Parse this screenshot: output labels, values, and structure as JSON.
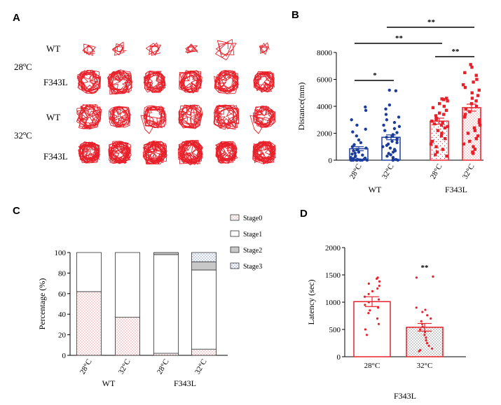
{
  "panels": {
    "a": "A",
    "b": "B",
    "c": "C",
    "d": "D"
  },
  "panel_a": {
    "rows": [
      {
        "temp": "",
        "genotype": "WT"
      },
      {
        "temp": "28ºC",
        "genotype": "F343L"
      },
      {
        "temp": "",
        "genotype": "WT"
      },
      {
        "temp": "32ºC",
        "genotype": "F343L"
      }
    ],
    "trace_color": "#e8202a",
    "columns": 6
  },
  "chart_data": [
    {
      "id": "B",
      "type": "bar",
      "ylabel": "Distance(mm)",
      "ylim": [
        0,
        8000
      ],
      "yticks": [
        "0",
        "2000",
        "4000",
        "6000",
        "8000"
      ],
      "categories": [
        "28°C",
        "32°C",
        "28°C",
        "32°C"
      ],
      "groups": [
        "WT",
        "F343L"
      ],
      "values": [
        850,
        1700,
        2900,
        3900
      ],
      "sem": [
        150,
        180,
        220,
        260
      ],
      "colors": [
        "#1c3d9c",
        "#1c3d9c",
        "#e8202a",
        "#e8202a"
      ],
      "points": [
        [
          3950,
          3700,
          3000,
          2600,
          2300,
          2100,
          1800,
          1500,
          1300,
          1150,
          1000,
          900,
          800,
          700,
          600,
          520,
          450,
          380,
          320,
          260,
          200,
          150,
          120,
          90,
          60,
          40,
          20,
          10,
          5,
          0,
          0,
          0,
          0,
          0,
          0,
          0
        ],
        [
          5200,
          5150,
          4100,
          3800,
          3400,
          3200,
          3000,
          2800,
          2600,
          2500,
          2350,
          2200,
          2050,
          1900,
          1800,
          1700,
          1600,
          1500,
          1400,
          1300,
          1200,
          1100,
          1000,
          900,
          800,
          700,
          600,
          500,
          400,
          300,
          200,
          100,
          50,
          0,
          0,
          0
        ],
        [
          4600,
          4550,
          4500,
          4400,
          4200,
          4000,
          3900,
          3700,
          3500,
          3400,
          3300,
          3100,
          3000,
          2900,
          2800,
          2700,
          2600,
          2500,
          2400,
          2200,
          2000,
          1800,
          1600,
          1400,
          1200,
          1000,
          800,
          600,
          400,
          300
        ],
        [
          7100,
          6900,
          6500,
          6300,
          6000,
          5800,
          5600,
          5400,
          5200,
          5000,
          4800,
          4600,
          4400,
          4200,
          4000,
          3800,
          3600,
          3400,
          3200,
          3000,
          2800,
          2600,
          2400,
          2200,
          2000,
          1800,
          1600,
          1400,
          1200,
          1000,
          800,
          600,
          500
        ]
      ],
      "significance": [
        {
          "label": "*",
          "from": 0,
          "to": 1,
          "y": 5900
        },
        {
          "label": "**",
          "from": 2,
          "to": 3,
          "y": 7600
        },
        {
          "label": "**",
          "from": 0,
          "to": 2,
          "y": 8600
        },
        {
          "label": "**",
          "from": 1,
          "to": 3,
          "y": 9800
        }
      ]
    },
    {
      "id": "C",
      "type": "stacked-bar",
      "ylabel": "Percentage (%)",
      "ylim": [
        0,
        100
      ],
      "yticks": [
        "0",
        "20",
        "40",
        "60",
        "80",
        "100"
      ],
      "categories": [
        "28°C",
        "32°C",
        "28°C",
        "32°C"
      ],
      "groups": [
        "WT",
        "F343L"
      ],
      "series": [
        {
          "name": "Stage0",
          "values": [
            62,
            37,
            2,
            6
          ]
        },
        {
          "name": "Stage1",
          "values": [
            38,
            63,
            96,
            77
          ]
        },
        {
          "name": "Stage2",
          "values": [
            0,
            0,
            2,
            8
          ]
        },
        {
          "name": "Stage3",
          "values": [
            0,
            0,
            0,
            9
          ]
        }
      ],
      "legend": [
        "Stage0",
        "Stage1",
        "Stage2",
        "Stage3"
      ]
    },
    {
      "id": "D",
      "type": "bar",
      "ylabel": "Latency (sec)",
      "ylim": [
        0,
        2000
      ],
      "yticks": [
        "0",
        "500",
        "1000",
        "1500",
        "2000"
      ],
      "categories": [
        "28°C",
        "32°C"
      ],
      "xlabel": "F343L",
      "values": [
        1010,
        540
      ],
      "sem": [
        90,
        70
      ],
      "significance_label": "**",
      "points": [
        [
          1450,
          1430,
          1380,
          1340,
          1300,
          1250,
          1200,
          1150,
          1100,
          1050,
          1000,
          950,
          900,
          850,
          800,
          700,
          600,
          500,
          400
        ],
        [
          1470,
          1450,
          900,
          860,
          820,
          760,
          700,
          650,
          600,
          550,
          500,
          450,
          400,
          350,
          300,
          250,
          200,
          150,
          120,
          100
        ]
      ]
    }
  ]
}
